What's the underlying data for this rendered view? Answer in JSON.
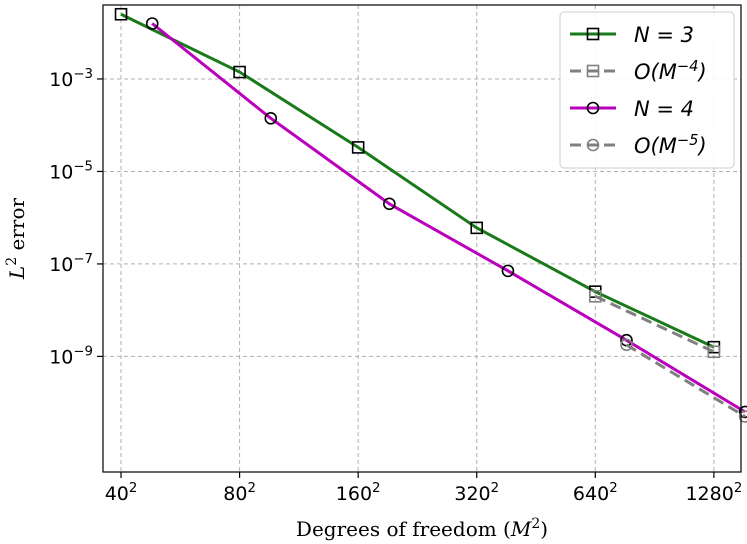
{
  "chart_data": {
    "type": "line",
    "xscale": "log2",
    "yscale": "log10",
    "xlabel": "Degrees of freedom (M²)",
    "ylabel": "L² error",
    "xlim": [
      36,
      1500
    ],
    "ylim_exp": [
      -11.5,
      -1.4
    ],
    "grid": true,
    "x_ticks": [
      {
        "value": 40,
        "base": "40",
        "sup": "2"
      },
      {
        "value": 80,
        "base": "80",
        "sup": "2"
      },
      {
        "value": 160,
        "base": "160",
        "sup": "2"
      },
      {
        "value": 320,
        "base": "320",
        "sup": "2"
      },
      {
        "value": 640,
        "base": "640",
        "sup": "2"
      },
      {
        "value": 1280,
        "base": "1280",
        "sup": "2"
      }
    ],
    "y_ticks": [
      {
        "exp": -3,
        "base": "10",
        "sup": "−3"
      },
      {
        "exp": -5,
        "base": "10",
        "sup": "−5"
      },
      {
        "exp": -7,
        "base": "10",
        "sup": "−7"
      },
      {
        "exp": -9,
        "base": "10",
        "sup": "−9"
      }
    ],
    "series": [
      {
        "name": "N = 3",
        "color": "#1a7a1a",
        "marker": "square",
        "dashed": false,
        "x": [
          40,
          80,
          160,
          320,
          640,
          1280
        ],
        "y_exp": [
          -1.6,
          -2.85,
          -4.48,
          -6.22,
          -7.6,
          -8.8
        ]
      },
      {
        "name": "O(M⁻⁴)",
        "color": "#808080",
        "marker": "square",
        "dashed": true,
        "x": [
          640,
          1280
        ],
        "y_exp": [
          -7.7,
          -8.9
        ]
      },
      {
        "name": "N = 4",
        "color": "#bb00bb",
        "marker": "circle",
        "dashed": false,
        "x": [
          48,
          96,
          192,
          384,
          768,
          1536
        ],
        "y_exp": [
          -1.8,
          -3.85,
          -5.7,
          -7.15,
          -8.65,
          -10.2
        ]
      },
      {
        "name": "O(M⁻⁵)",
        "color": "#808080",
        "marker": "circle",
        "dashed": true,
        "x": [
          768,
          1536
        ],
        "y_exp": [
          -8.75,
          -10.3
        ]
      }
    ],
    "legend": {
      "position": "top-right",
      "entries": [
        {
          "prefix": "N = 3",
          "sup": "",
          "suffix": ""
        },
        {
          "prefix": "O(M",
          "sup": "−4",
          "suffix": ")"
        },
        {
          "prefix": "N = 4",
          "sup": "",
          "suffix": ""
        },
        {
          "prefix": "O(M",
          "sup": "−5",
          "suffix": ")"
        }
      ]
    }
  }
}
